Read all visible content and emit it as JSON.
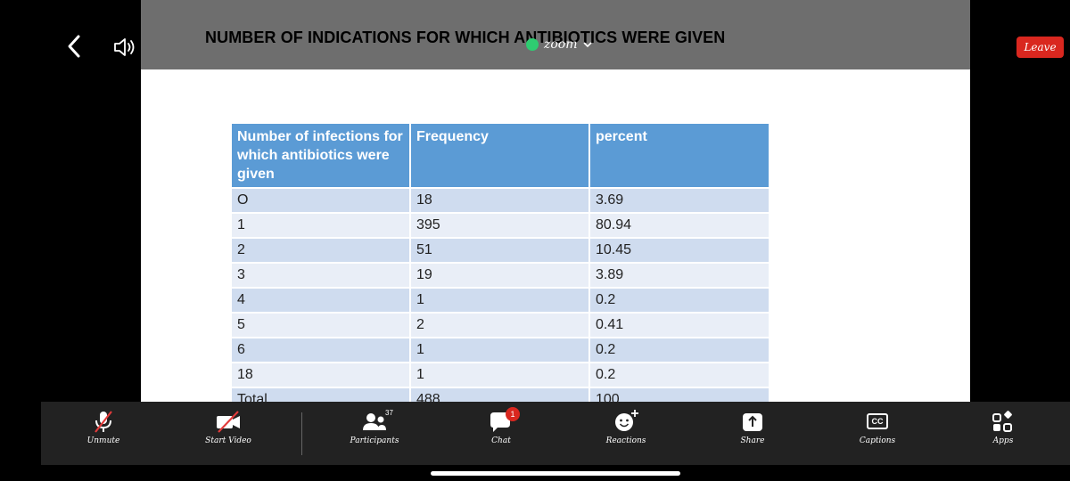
{
  "header": {
    "slide_title": "NUMBER OF INDICATIONS  FOR WHICH ANTIBIOTICS WERE GIVEN",
    "zoom_label": "zoom",
    "leave_label": "Leave"
  },
  "table": {
    "headers": [
      "Number of infections for which antibiotics were given",
      "Frequency",
      "percent"
    ],
    "rows": [
      [
        "O",
        "18",
        "3.69"
      ],
      [
        "1",
        "395",
        "80.94"
      ],
      [
        "2",
        "51",
        "10.45"
      ],
      [
        "3",
        "19",
        "3.89"
      ],
      [
        "4",
        "1",
        "0.2"
      ],
      [
        "5",
        "2",
        "0.41"
      ],
      [
        "6",
        "1",
        "0.2"
      ],
      [
        "18",
        "1",
        "0.2"
      ],
      [
        "Total",
        "488",
        "100"
      ]
    ]
  },
  "toolbar": {
    "unmute": "Unmute",
    "start_video": "Start Video",
    "participants": "Participants",
    "participants_count": "37",
    "chat": "Chat",
    "chat_badge": "1",
    "reactions": "Reactions",
    "share": "Share",
    "captions": "Captions",
    "captions_icon_text": "CC",
    "apps": "Apps"
  },
  "colors": {
    "table_header": "#5b9bd5",
    "row_odd": "#cfdcef",
    "row_even": "#e9eef7",
    "leave_button": "#d9271f",
    "status_green": "#2ecc71"
  }
}
